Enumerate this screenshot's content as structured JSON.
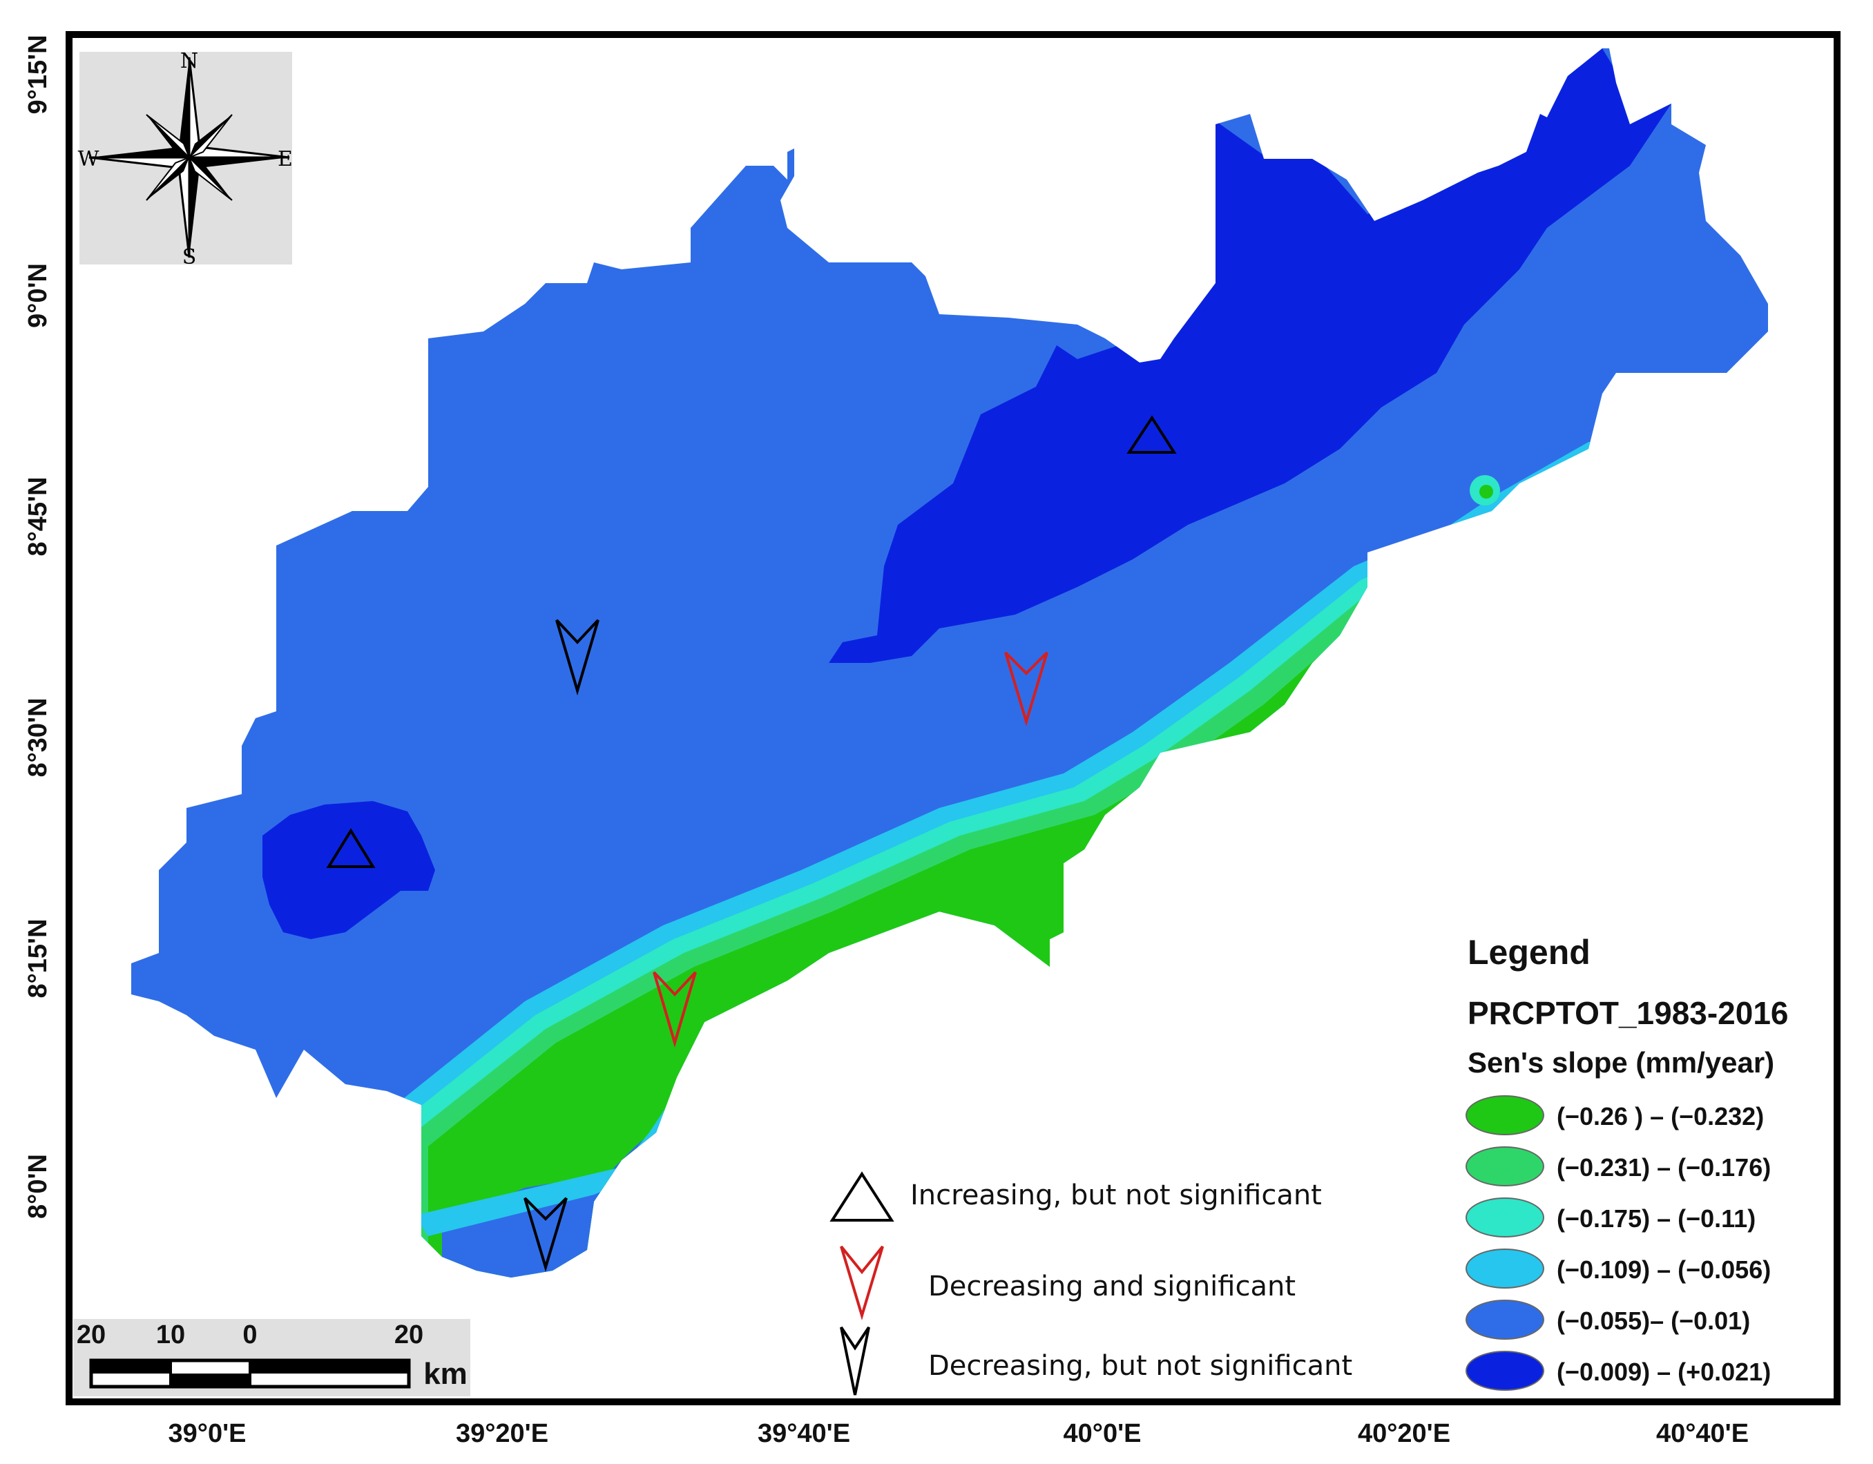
{
  "compass": {
    "north": "N",
    "south": "S",
    "east": "E",
    "west": "W"
  },
  "axes": {
    "x_ticks": [
      "39°0'E",
      "39°20'E",
      "39°40'E",
      "40°0'E",
      "40°20'E",
      "40°40'E"
    ],
    "y_ticks": [
      "9°15'N",
      "9°0'N",
      "8°45'N",
      "8°30'N",
      "8°15'N",
      "8°0'N"
    ]
  },
  "legend": {
    "heading": "Legend",
    "dataset": "PRCPTOT_1983-2016",
    "unit_title": "Sen's slope (mm/year)",
    "classes": [
      {
        "label": "(−0.26 ) – (−0.232)",
        "color": "#1fc814"
      },
      {
        "label": "(−0.231) – (−0.176)",
        "color": "#2ed66a"
      },
      {
        "label": "(−0.175) – (−0.11)",
        "color": "#2ee6c8"
      },
      {
        "label": "(−0.109) – (−0.056)",
        "color": "#26c6ee"
      },
      {
        "label": "(−0.055)– (−0.01)",
        "color": "#2f6de8"
      },
      {
        "label": "(−0.009) – (+0.021)",
        "color": "#0a22e0"
      }
    ]
  },
  "trend_legend": [
    {
      "symbol": "up-triangle-black",
      "label": "Increasing, but not significant",
      "color": "#000000"
    },
    {
      "symbol": "down-arrow-red",
      "label": "Decreasing and significant",
      "color": "#d42020"
    },
    {
      "symbol": "down-arrow-black",
      "label": "Decreasing, but not significant",
      "color": "#000000"
    }
  ],
  "stations": [
    {
      "trend": "increasing-not-significant",
      "lon": "40°4'E",
      "lat": "8°52'N"
    },
    {
      "trend": "increasing-not-significant",
      "lon": "39°10'E",
      "lat": "8°22'N"
    },
    {
      "trend": "decreasing-not-significant",
      "lon": "39°26'E",
      "lat": "8°36'N"
    },
    {
      "trend": "decreasing-significant",
      "lon": "39°56'E",
      "lat": "8°33'N"
    },
    {
      "trend": "decreasing-significant",
      "lon": "39°32'E",
      "lat": "8°11'N"
    },
    {
      "trend": "decreasing-not-significant",
      "lon": "39°24'E",
      "lat": "7°57'N"
    }
  ],
  "scale_bar": {
    "labels": [
      "20",
      "10",
      "0",
      "20"
    ],
    "unit": "km"
  }
}
